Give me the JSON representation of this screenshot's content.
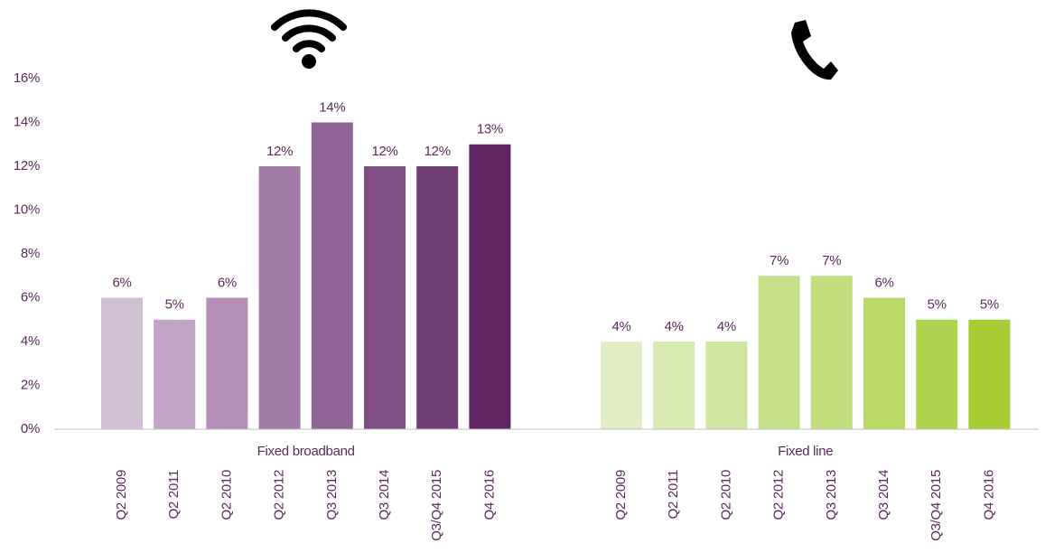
{
  "chart_data": {
    "type": "bar",
    "categories": [
      "Fixed broadband",
      "Fixed line"
    ],
    "series": [
      {
        "name": "Q2 2009",
        "color": [
          "#d1bfd4",
          "#e2efc4"
        ],
        "values": [
          6,
          4
        ],
        "value_labels": [
          "6%",
          "4%"
        ]
      },
      {
        "name": "Q2 2011",
        "color": [
          "#c2a5c6",
          "#d9eab3"
        ],
        "values": [
          5,
          4
        ],
        "value_labels": [
          "5%",
          "4%"
        ]
      },
      {
        "name": "Q2 2010",
        "color": [
          "#b48eb8",
          "#d1e5a2"
        ],
        "values": [
          6,
          4
        ],
        "value_labels": [
          "6%",
          "4%"
        ]
      },
      {
        "name": "Q2 2012",
        "color": [
          "#a27ca7",
          "#c6e08a"
        ],
        "values": [
          12,
          7
        ],
        "value_labels": [
          "12%",
          "7%"
        ]
      },
      {
        "name": "Q3 2013",
        "color": [
          "#8e6594",
          "#c1dd7c"
        ],
        "values": [
          14,
          7
        ],
        "value_labels": [
          "14%",
          "7%"
        ]
      },
      {
        "name": "Q3 2014",
        "color": [
          "#7f4f83",
          "#b9d866"
        ],
        "values": [
          12,
          6
        ],
        "value_labels": [
          "12%",
          "6%"
        ]
      },
      {
        "name": "Q3/Q4 2015",
        "color": [
          "#703d74",
          "#b0d44f"
        ],
        "values": [
          12,
          5
        ],
        "value_labels": [
          "12%",
          "5%"
        ]
      },
      {
        "name": "Q4 2016",
        "color": [
          "#612463",
          "#a8cc33"
        ],
        "values": [
          13,
          5
        ],
        "value_labels": [
          "13%",
          "5%"
        ]
      }
    ],
    "ylim": [
      0,
      16
    ],
    "yticks": [
      {
        "value": 0,
        "label": "0%"
      },
      {
        "value": 2,
        "label": "2%"
      },
      {
        "value": 4,
        "label": "4%"
      },
      {
        "value": 6,
        "label": "6%"
      },
      {
        "value": 8,
        "label": "8%"
      },
      {
        "value": 10,
        "label": "10%"
      },
      {
        "value": 12,
        "label": "12%"
      },
      {
        "value": 14,
        "label": "14%"
      },
      {
        "value": 16,
        "label": "16%"
      }
    ]
  }
}
